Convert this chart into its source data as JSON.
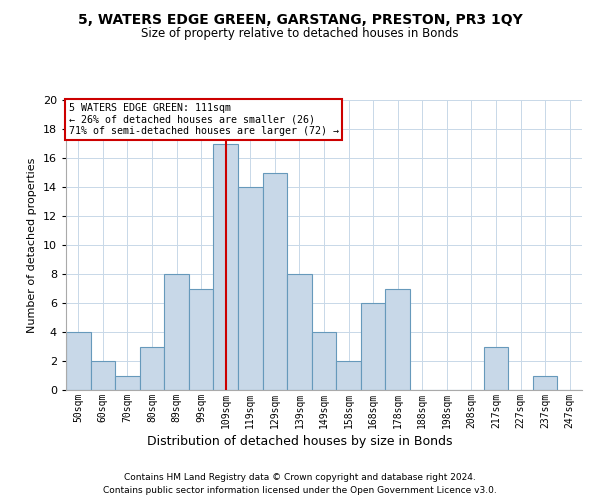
{
  "title": "5, WATERS EDGE GREEN, GARSTANG, PRESTON, PR3 1QY",
  "subtitle": "Size of property relative to detached houses in Bonds",
  "xlabel": "Distribution of detached houses by size in Bonds",
  "ylabel": "Number of detached properties",
  "categories": [
    "50sqm",
    "60sqm",
    "70sqm",
    "80sqm",
    "89sqm",
    "99sqm",
    "109sqm",
    "119sqm",
    "129sqm",
    "139sqm",
    "149sqm",
    "158sqm",
    "168sqm",
    "178sqm",
    "188sqm",
    "198sqm",
    "208sqm",
    "217sqm",
    "227sqm",
    "237sqm",
    "247sqm"
  ],
  "values": [
    4,
    2,
    1,
    3,
    8,
    7,
    17,
    14,
    15,
    8,
    4,
    2,
    6,
    7,
    0,
    0,
    0,
    3,
    0,
    1,
    0
  ],
  "bar_color": "#c8d8e8",
  "bar_edge_color": "#6699bb",
  "highlight_index": 6,
  "highlight_color": "#cc0000",
  "ylim": [
    0,
    20
  ],
  "yticks": [
    0,
    2,
    4,
    6,
    8,
    10,
    12,
    14,
    16,
    18,
    20
  ],
  "annotation_lines": [
    "5 WATERS EDGE GREEN: 111sqm",
    "← 26% of detached houses are smaller (26)",
    "71% of semi-detached houses are larger (72) →"
  ],
  "annotation_box_color": "#ffffff",
  "annotation_box_edge": "#cc0000",
  "footer_lines": [
    "Contains HM Land Registry data © Crown copyright and database right 2024.",
    "Contains public sector information licensed under the Open Government Licence v3.0."
  ],
  "bg_color": "#ffffff",
  "grid_color": "#c8d8e8"
}
